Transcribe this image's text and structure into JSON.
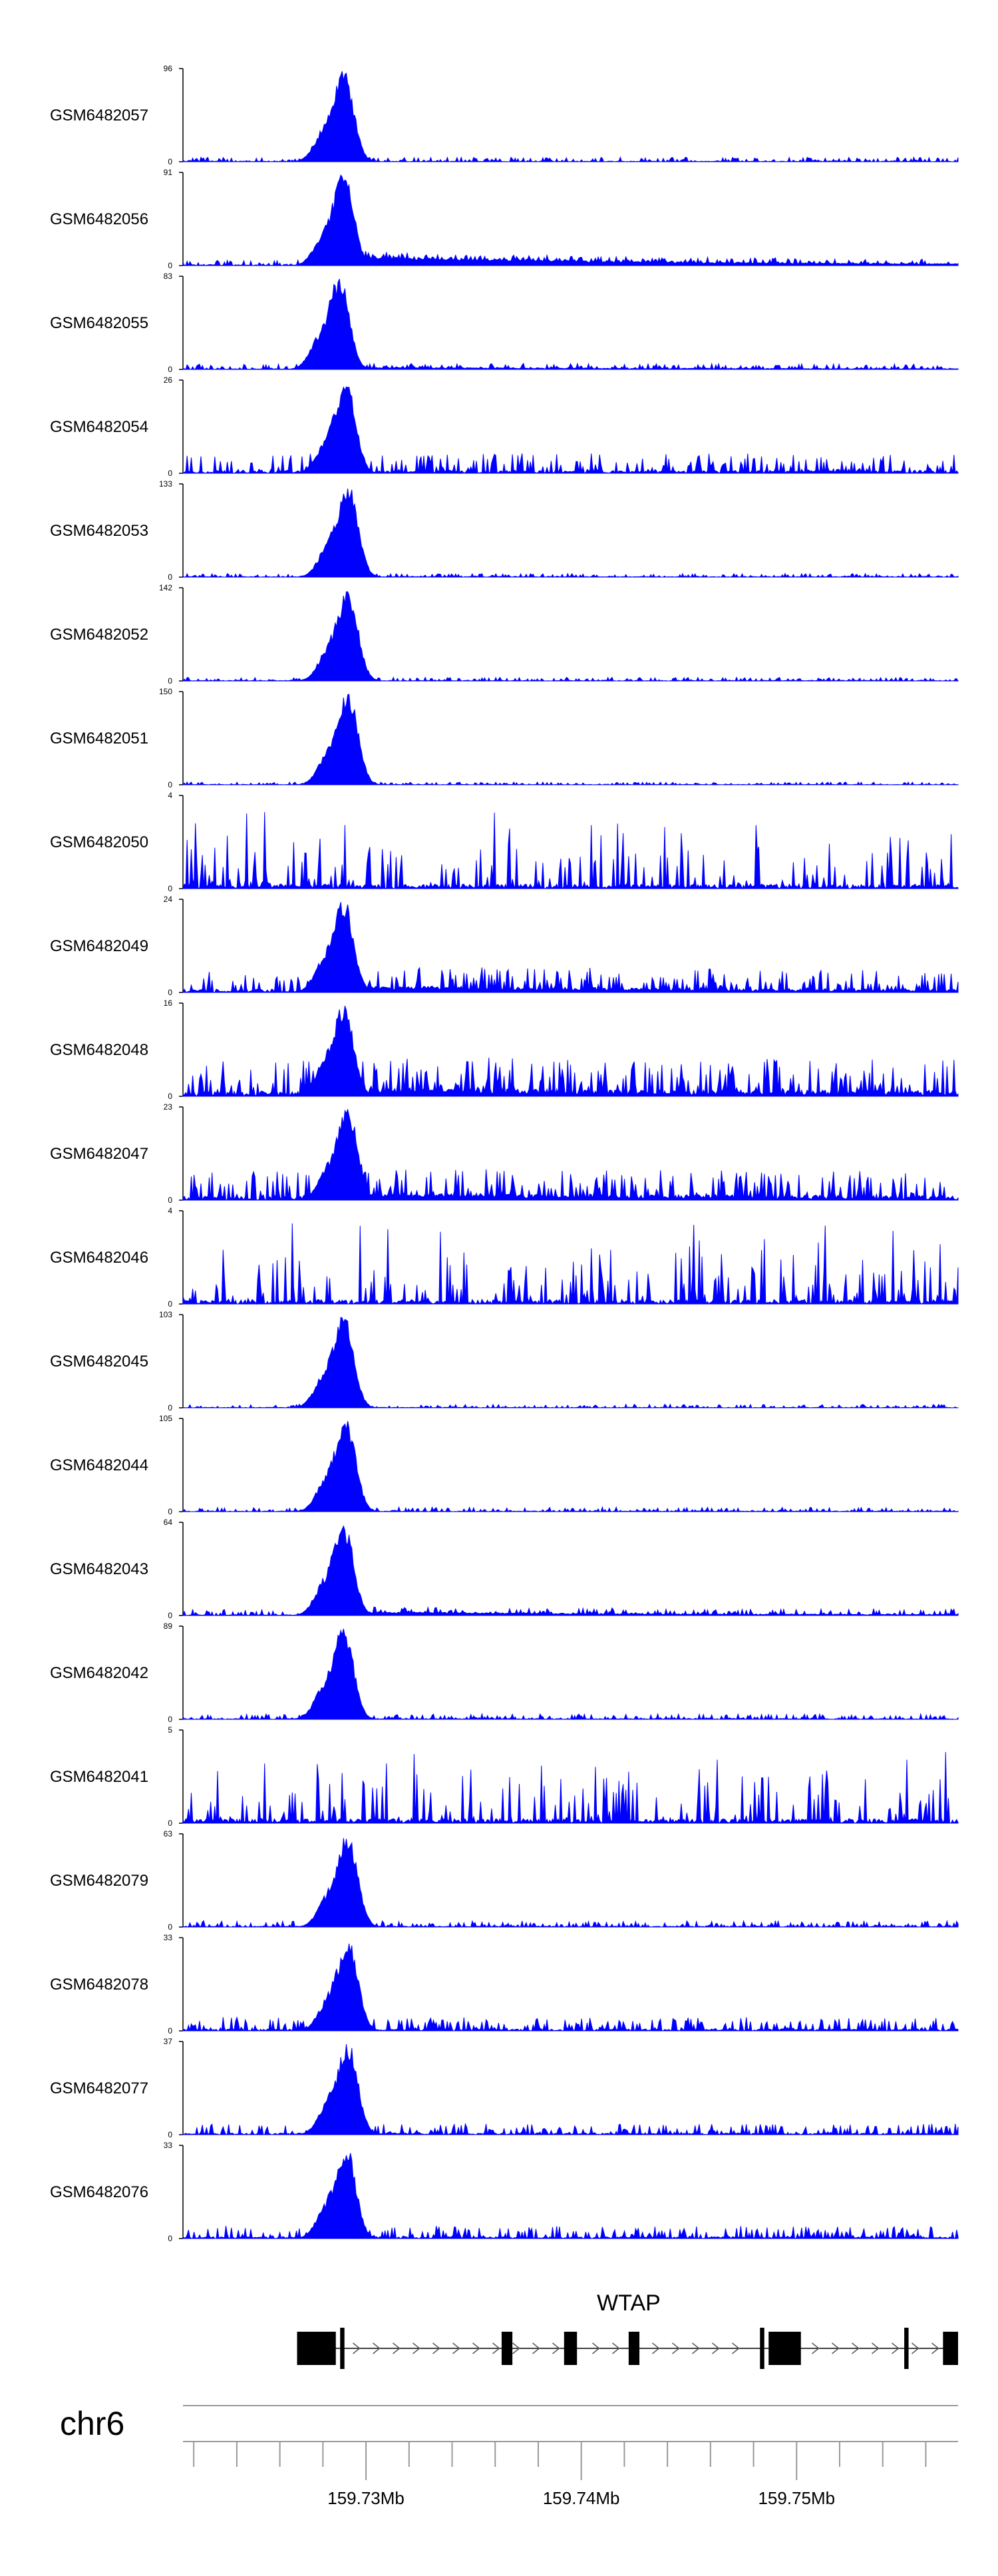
{
  "colors": {
    "signal": "#0000ff",
    "axis": "#000000",
    "gene": "#000000",
    "ideogram": "#999999"
  },
  "chart_data": {
    "type": "area",
    "region": {
      "chrom": "chr6",
      "start_mb": 159.7215,
      "end_mb": 159.7575
    },
    "tracks": [
      {
        "name": "GSM6482057",
        "ymax": 96,
        "ymin": 0,
        "profile": "peak",
        "peak_mb": 159.729,
        "noise": 0.05,
        "tail": 0.0
      },
      {
        "name": "GSM6482056",
        "ymax": 91,
        "ymin": 0,
        "profile": "peak",
        "peak_mb": 159.729,
        "noise": 0.06,
        "tail": 0.12
      },
      {
        "name": "GSM6482055",
        "ymax": 83,
        "ymin": 0,
        "profile": "peak",
        "peak_mb": 159.7288,
        "noise": 0.06,
        "tail": 0.02
      },
      {
        "name": "GSM6482054",
        "ymax": 26,
        "ymin": 0,
        "profile": "peak",
        "peak_mb": 159.7291,
        "noise": 0.22,
        "tail": 0.0
      },
      {
        "name": "GSM6482053",
        "ymax": 133,
        "ymin": 0,
        "profile": "peak",
        "peak_mb": 159.7292,
        "noise": 0.04,
        "tail": 0.0
      },
      {
        "name": "GSM6482052",
        "ymax": 142,
        "ymin": 0,
        "profile": "peak",
        "peak_mb": 159.7292,
        "noise": 0.04,
        "tail": 0.0
      },
      {
        "name": "GSM6482051",
        "ymax": 150,
        "ymin": 0,
        "profile": "peak",
        "peak_mb": 159.7292,
        "noise": 0.03,
        "tail": 0.0
      },
      {
        "name": "GSM6482050",
        "ymax": 4,
        "ymin": 0,
        "profile": "noise",
        "peak_mb": 159.729,
        "noise": 0.95,
        "tail": 0.0
      },
      {
        "name": "GSM6482049",
        "ymax": 24,
        "ymin": 0,
        "profile": "peak",
        "peak_mb": 159.729,
        "noise": 0.25,
        "tail": 0.05
      },
      {
        "name": "GSM6482048",
        "ymax": 16,
        "ymin": 0,
        "profile": "peak",
        "peak_mb": 159.729,
        "noise": 0.4,
        "tail": 0.05
      },
      {
        "name": "GSM6482047",
        "ymax": 23,
        "ymin": 0,
        "profile": "peak",
        "peak_mb": 159.7292,
        "noise": 0.32,
        "tail": 0.05
      },
      {
        "name": "GSM6482046",
        "ymax": 4,
        "ymin": 0,
        "profile": "noise",
        "peak_mb": 159.729,
        "noise": 0.95,
        "tail": 0.0
      },
      {
        "name": "GSM6482045",
        "ymax": 103,
        "ymin": 0,
        "profile": "peak",
        "peak_mb": 159.729,
        "noise": 0.04,
        "tail": 0.0
      },
      {
        "name": "GSM6482044",
        "ymax": 105,
        "ymin": 0,
        "profile": "peak",
        "peak_mb": 159.7291,
        "noise": 0.05,
        "tail": 0.0
      },
      {
        "name": "GSM6482043",
        "ymax": 64,
        "ymin": 0,
        "profile": "peak",
        "peak_mb": 159.729,
        "noise": 0.07,
        "tail": 0.04
      },
      {
        "name": "GSM6482042",
        "ymax": 89,
        "ymin": 0,
        "profile": "peak",
        "peak_mb": 159.729,
        "noise": 0.06,
        "tail": 0.0
      },
      {
        "name": "GSM6482041",
        "ymax": 5,
        "ymin": 0,
        "profile": "noise",
        "peak_mb": 159.729,
        "noise": 0.9,
        "tail": 0.0
      },
      {
        "name": "GSM6482079",
        "ymax": 63,
        "ymin": 0,
        "profile": "peak",
        "peak_mb": 159.7292,
        "noise": 0.07,
        "tail": 0.0
      },
      {
        "name": "GSM6482078",
        "ymax": 33,
        "ymin": 0,
        "profile": "peak",
        "peak_mb": 159.7292,
        "noise": 0.15,
        "tail": 0.0
      },
      {
        "name": "GSM6482077",
        "ymax": 37,
        "ymin": 0,
        "profile": "peak",
        "peak_mb": 159.7292,
        "noise": 0.12,
        "tail": 0.0
      },
      {
        "name": "GSM6482076",
        "ymax": 33,
        "ymin": 0,
        "profile": "peak",
        "peak_mb": 159.7291,
        "noise": 0.14,
        "tail": 0.0
      }
    ],
    "gene": {
      "name": "WTAP",
      "strand": "+",
      "start_mb": 159.7268,
      "end_mb": 159.7575,
      "exons_mb": [
        [
          159.7268,
          159.7286
        ],
        [
          159.7288,
          159.729
        ],
        [
          159.7363,
          159.7368
        ],
        [
          159.7392,
          159.7398
        ],
        [
          159.7422,
          159.7427
        ],
        [
          159.7483,
          159.7485
        ],
        [
          159.7487,
          159.7502
        ],
        [
          159.755,
          159.7552
        ],
        [
          159.7568,
          159.7575
        ]
      ]
    },
    "axis": {
      "chrom": "chr6",
      "tick_labels": [
        "159.73Mb",
        "159.74Mb",
        "159.75Mb"
      ],
      "major_ticks_mb": [
        159.73,
        159.74,
        159.75
      ],
      "minor_step_mb": 0.002
    }
  }
}
